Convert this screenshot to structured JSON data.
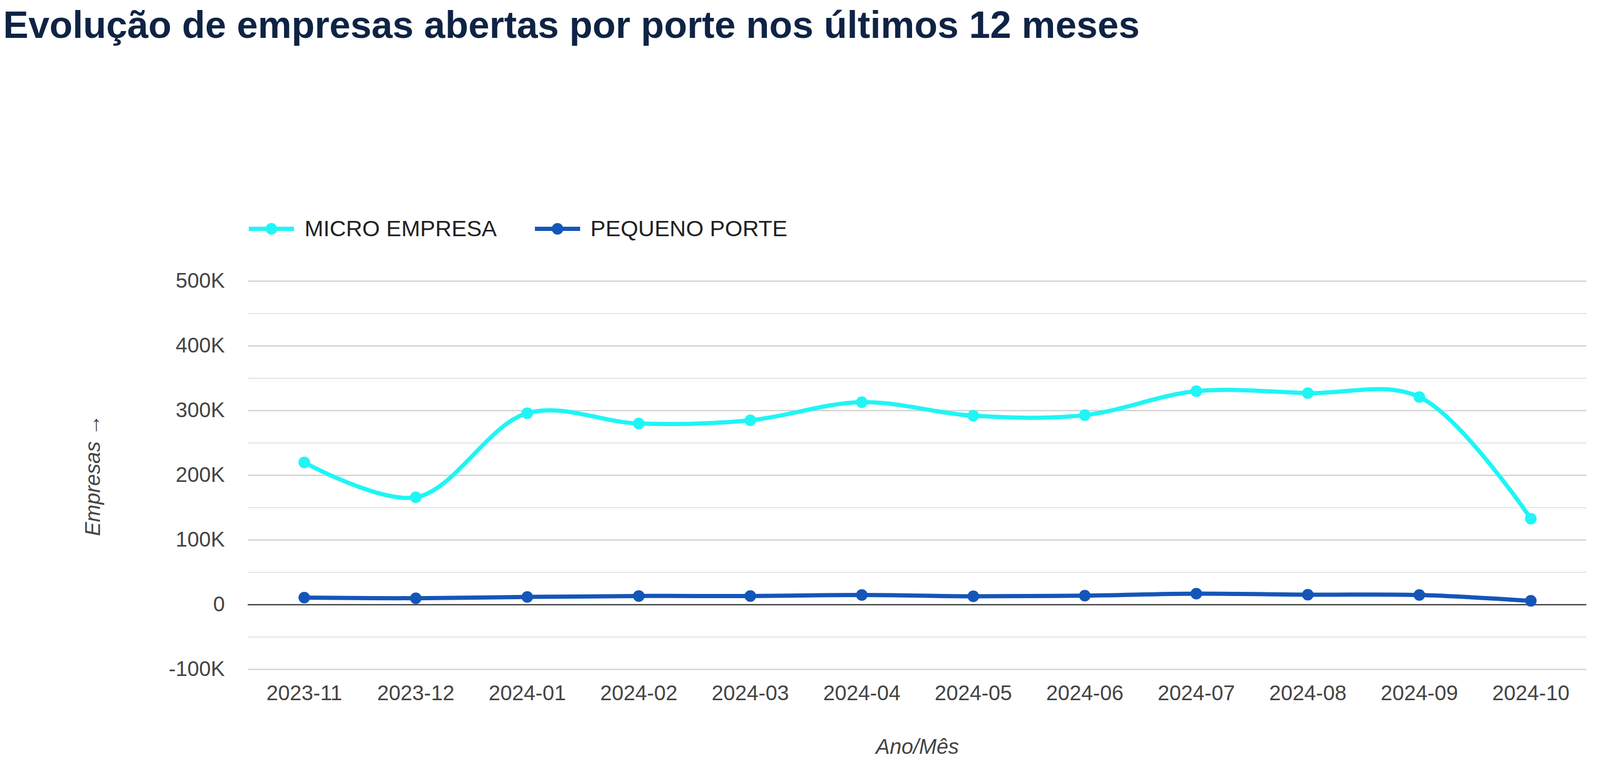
{
  "chart_data": {
    "type": "line",
    "title": "Evolução de empresas abertas por porte nos últimos 12 meses",
    "x_label": "Ano/Mês",
    "y_label": "Empresas",
    "categories": [
      "2023-11",
      "2023-12",
      "2024-01",
      "2024-02",
      "2024-03",
      "2024-04",
      "2024-05",
      "2024-06",
      "2024-07",
      "2024-08",
      "2024-09",
      "2024-10"
    ],
    "series": [
      {
        "name": "MICRO EMPRESA",
        "color": "#1ff5f5",
        "values": [
          220000,
          166000,
          296000,
          280000,
          285000,
          313000,
          292000,
          293000,
          330000,
          327000,
          321000,
          133000
        ]
      },
      {
        "name": "PEQUENO PORTE",
        "color": "#1456b8",
        "values": [
          11000,
          10000,
          12000,
          13500,
          13500,
          15000,
          13000,
          14000,
          17000,
          15500,
          15000,
          6000
        ]
      }
    ],
    "ylim": [
      -100000,
      500000
    ],
    "yticks": [
      {
        "value": -100000,
        "label": "-100K"
      },
      0,
      {
        "value": 100000,
        "label": "100K"
      },
      {
        "value": 200000,
        "label": "200K"
      },
      {
        "value": 300000,
        "label": "300K"
      },
      {
        "value": 400000,
        "label": "400K"
      },
      {
        "value": 500000,
        "label": "500K"
      }
    ],
    "grid": true,
    "legend": "top-left",
    "marker": "circle"
  }
}
